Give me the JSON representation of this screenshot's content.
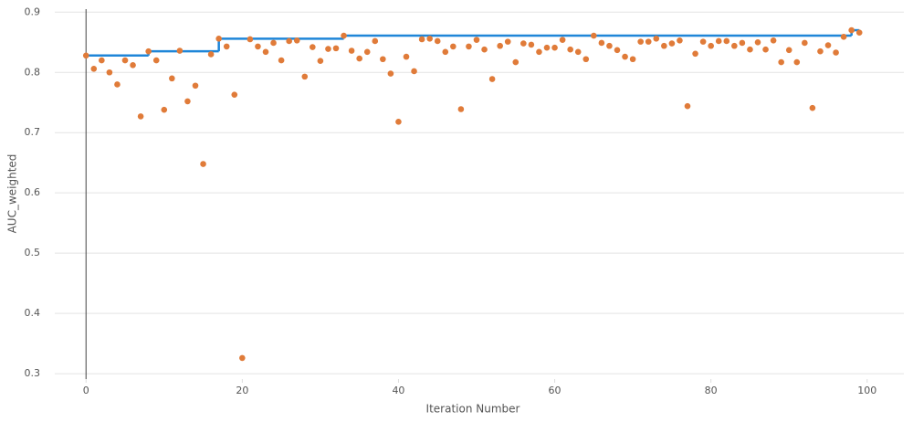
{
  "chart_data": {
    "type": "scatter",
    "x_label": "Iteration Number",
    "y_label": "AUC_weighted",
    "xlim": [
      -4,
      104.7
    ],
    "ylim": [
      0.291,
      0.905
    ],
    "xticks": [
      0,
      20,
      40,
      60,
      80,
      100
    ],
    "yticks": [
      0.3,
      0.4,
      0.5,
      0.6,
      0.7,
      0.8,
      0.9
    ],
    "grid": true,
    "series": [
      {
        "color": "#e07b39",
        "x": [
          0,
          1,
          2,
          3,
          4,
          5,
          6,
          7,
          8,
          9,
          10,
          11,
          12,
          13,
          14,
          15,
          16,
          17,
          18,
          19,
          20,
          21,
          22,
          23,
          24,
          25,
          26,
          27,
          28,
          29,
          30,
          31,
          32,
          33,
          34,
          35,
          36,
          37,
          38,
          39,
          40,
          41,
          42,
          43,
          44,
          45,
          46,
          47,
          48,
          49,
          50,
          51,
          52,
          53,
          54,
          55,
          56,
          57,
          58,
          59,
          60,
          61,
          62,
          63,
          64,
          65,
          66,
          67,
          68,
          69,
          70,
          71,
          72,
          73,
          74,
          75,
          76,
          77,
          78,
          79,
          80,
          81,
          82,
          83,
          84,
          85,
          86,
          87,
          88,
          89,
          90,
          91,
          92,
          93,
          94,
          95,
          96,
          97,
          98,
          99
        ],
        "values": [
          0.828,
          0.806,
          0.82,
          0.8,
          0.78,
          0.82,
          0.812,
          0.727,
          0.835,
          0.82,
          0.738,
          0.79,
          0.836,
          0.752,
          0.778,
          0.648,
          0.83,
          0.856,
          0.843,
          0.763,
          0.326,
          0.855,
          0.843,
          0.834,
          0.849,
          0.82,
          0.852,
          0.853,
          0.793,
          0.842,
          0.819,
          0.839,
          0.84,
          0.861,
          0.836,
          0.823,
          0.834,
          0.852,
          0.822,
          0.798,
          0.718,
          0.826,
          0.802,
          0.855,
          0.856,
          0.852,
          0.834,
          0.843,
          0.739,
          0.843,
          0.854,
          0.838,
          0.789,
          0.844,
          0.851,
          0.817,
          0.848,
          0.846,
          0.834,
          0.841,
          0.841,
          0.854,
          0.838,
          0.834,
          0.822,
          0.861,
          0.849,
          0.844,
          0.837,
          0.826,
          0.822,
          0.851,
          0.851,
          0.856,
          0.844,
          0.848,
          0.853,
          0.744,
          0.831,
          0.851,
          0.844,
          0.852,
          0.852,
          0.844,
          0.849,
          0.838,
          0.85,
          0.838,
          0.853,
          0.817,
          0.837,
          0.817,
          0.849,
          0.741,
          0.835,
          0.845,
          0.833,
          0.859,
          0.87,
          0.866
        ]
      },
      {
        "type": "step",
        "color": "#1f86d8",
        "x": [
          0,
          8,
          17,
          33,
          98,
          99
        ],
        "values": [
          0.828,
          0.835,
          0.856,
          0.861,
          0.87,
          0.87
        ]
      }
    ]
  }
}
